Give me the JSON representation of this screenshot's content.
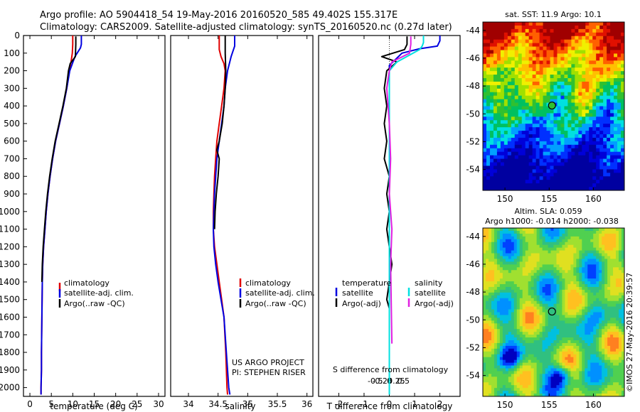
{
  "header": {
    "line1": "Argo profile: AO 5904418_54 19-May-2016 20160520_585 49.402S 155.317E",
    "line2": "Climatology: CARS2009. Satellite-adjusted climatology: synTS_20160520.nc (0.27d later)"
  },
  "colors": {
    "climatology": "#e00000",
    "satellite": "#0000e0",
    "argo": "#000000",
    "sal_satellite": "#00e0e0",
    "sal_argo": "#e020e0"
  },
  "chart_data": [
    {
      "type": "line",
      "id": "temperature",
      "xlabel": "temperature (deg C)",
      "xlim": [
        -1.5,
        31.5
      ],
      "ylim": [
        2050,
        0
      ],
      "x_ticks": [
        0,
        5,
        10,
        15,
        20,
        25,
        30
      ],
      "y_ticks": [
        0,
        100,
        200,
        300,
        400,
        500,
        600,
        700,
        800,
        900,
        1000,
        1100,
        1200,
        1300,
        1400,
        1500,
        1600,
        1700,
        1800,
        1900,
        2000
      ],
      "legend": [
        "climatology",
        "satellite-adj. clim.",
        "Argo(..raw -QC)"
      ],
      "series": [
        {
          "name": "climatology",
          "color": "#e00000",
          "x": [
            10.0,
            10.0,
            9.9,
            9.6,
            9.2,
            8.6,
            7.8,
            6.9,
            6.0,
            5.3,
            4.7,
            4.2,
            3.8,
            3.5,
            3.2,
            3.0,
            2.9,
            2.8,
            2.7,
            2.7,
            2.6,
            2.6
          ],
          "y": [
            0,
            50,
            100,
            150,
            200,
            300,
            400,
            500,
            600,
            700,
            800,
            900,
            1000,
            1100,
            1200,
            1300,
            1400,
            1600,
            1800,
            1900,
            2000,
            2040
          ]
        },
        {
          "name": "satellite-adj. clim.",
          "color": "#0000e0",
          "x": [
            12.0,
            12.0,
            11.8,
            10.5,
            9.3,
            8.6,
            7.8,
            6.9,
            6.0,
            5.3,
            4.7,
            4.2,
            3.8,
            3.5,
            3.2,
            3.0,
            2.9,
            2.8,
            2.7,
            2.7,
            2.6,
            2.6
          ],
          "y": [
            0,
            50,
            70,
            120,
            200,
            300,
            400,
            500,
            600,
            700,
            800,
            900,
            1000,
            1100,
            1200,
            1300,
            1400,
            1600,
            1800,
            1900,
            2000,
            2040
          ]
        },
        {
          "name": "Argo(..raw -QC)",
          "color": "#000000",
          "x": [
            10.7,
            10.7,
            10.6,
            9.4,
            9.0,
            8.5,
            7.7,
            6.8,
            5.9,
            5.2,
            4.6,
            4.1,
            3.7,
            3.4,
            3.1,
            2.9,
            2.8
          ],
          "y": [
            5,
            50,
            120,
            160,
            200,
            300,
            400,
            500,
            600,
            700,
            800,
            900,
            1000,
            1100,
            1200,
            1300,
            1400
          ]
        }
      ]
    },
    {
      "type": "line",
      "id": "salinity",
      "xlabel": "salinity",
      "xlim": [
        33.7,
        36.1
      ],
      "ylim": [
        2050,
        0
      ],
      "x_ticks": [
        34,
        34.5,
        35,
        35.5,
        36
      ],
      "legend": [
        "climatology",
        "satellite-adj. clim.",
        "Argo(..raw -QC)"
      ],
      "annotation": [
        "US ARGO PROJECT",
        "PI: STEPHEN RISER"
      ],
      "series": [
        {
          "name": "climatology",
          "color": "#e00000",
          "x": [
            34.52,
            34.52,
            34.55,
            34.6,
            34.62,
            34.6,
            34.56,
            34.52,
            34.48,
            34.46,
            34.44,
            34.43,
            34.42,
            34.42,
            34.44,
            34.48,
            34.52,
            34.56,
            34.6,
            34.63,
            34.65,
            34.66
          ],
          "y": [
            0,
            80,
            120,
            160,
            200,
            300,
            400,
            500,
            600,
            700,
            800,
            900,
            1000,
            1100,
            1200,
            1300,
            1400,
            1500,
            1600,
            1800,
            2000,
            2040
          ]
        },
        {
          "name": "satellite-adj. clim.",
          "color": "#0000e0",
          "x": [
            34.78,
            34.78,
            34.72,
            34.66,
            34.62,
            34.6,
            34.56,
            34.52,
            34.48,
            34.46,
            34.44,
            34.43,
            34.42,
            34.43,
            34.46,
            34.5,
            34.55,
            34.6,
            34.64,
            34.68,
            34.7
          ],
          "y": [
            0,
            60,
            120,
            200,
            300,
            400,
            500,
            600,
            700,
            800,
            900,
            1000,
            1100,
            1200,
            1300,
            1400,
            1500,
            1600,
            1800,
            2000,
            2040
          ]
        },
        {
          "name": "Argo(..raw -QC)",
          "color": "#000000",
          "x": [
            34.62,
            34.62,
            34.63,
            34.62,
            34.6,
            34.57,
            34.52,
            34.48,
            34.52,
            34.5,
            34.47,
            34.45,
            34.44
          ],
          "y": [
            0,
            100,
            200,
            300,
            400,
            500,
            600,
            650,
            700,
            800,
            900,
            1000,
            1100
          ]
        }
      ]
    },
    {
      "type": "line",
      "id": "difference",
      "xlabel": "T difference from climatology",
      "xlim": [
        -2.8,
        2.8
      ],
      "ylim": [
        2050,
        0
      ],
      "x_ticks": [
        -2,
        -1,
        0,
        1,
        2
      ],
      "s_label": "S difference from climatology",
      "s_ticks": [
        -0.5,
        -0.25,
        0,
        0.25,
        0.5
      ],
      "legend_headers": [
        "temperature",
        "salinity"
      ],
      "legend": {
        "temperature": [
          "satellite",
          "Argo(-adj)"
        ],
        "salinity": [
          "satellite",
          "Argo(-adj)"
        ]
      },
      "series": [
        {
          "name": "temperature satellite",
          "color": "#0000e0",
          "x": [
            2.0,
            2.0,
            1.9,
            1.2,
            0.5,
            0.0,
            0.0,
            0.0,
            0.0,
            0.0,
            0.0,
            0.0,
            0.0,
            0.0
          ],
          "y": [
            0,
            30,
            60,
            75,
            100,
            170,
            400,
            800,
            1100,
            1300,
            1500,
            1700,
            1900,
            2040
          ]
        },
        {
          "name": "temperature Argo(-adj)",
          "color": "#000000",
          "x": [
            0.7,
            0.7,
            0.6,
            -0.3,
            0.3,
            -0.1,
            -0.2,
            -0.1,
            -0.2,
            -0.1,
            -0.2,
            0.0,
            -0.1,
            0.0,
            -0.1,
            0.0,
            0.1,
            0.0,
            -0.1,
            0.0
          ],
          "y": [
            5,
            50,
            80,
            120,
            150,
            200,
            300,
            400,
            500,
            600,
            700,
            800,
            900,
            1000,
            1100,
            1200,
            1300,
            1400,
            1500,
            1550
          ]
        },
        {
          "name": "salinity satellite",
          "color": "#00e0e0",
          "x": [
            1.35,
            1.35,
            1.3,
            1.2,
            0.3,
            0.0,
            0.0,
            0.0,
            0.0,
            0.0
          ],
          "y": [
            0,
            40,
            60,
            80,
            150,
            200,
            600,
            1000,
            1500,
            2040
          ]
        },
        {
          "name": "salinity Argo(-adj)",
          "color": "#e020e0",
          "x": [
            0.85,
            0.85,
            0.8,
            0.1,
            0.0,
            -0.1,
            0.0,
            0.05,
            0.0,
            0.1,
            0.05,
            0.1
          ],
          "y": [
            5,
            50,
            100,
            150,
            200,
            300,
            500,
            700,
            900,
            1100,
            1300,
            1750
          ]
        }
      ]
    },
    {
      "type": "heatmap",
      "id": "sst-map",
      "title": "sat. SST: 11.9 Argo: 10.1",
      "x_ticks": [
        150,
        155,
        160
      ],
      "y_ticks": [
        -44,
        -46,
        -48,
        -50,
        -52,
        -54
      ],
      "xlim": [
        147.5,
        163.5
      ],
      "ylim": [
        -55.5,
        -43.4
      ],
      "marker": {
        "lon": 155.317,
        "lat": -49.402
      }
    },
    {
      "type": "heatmap",
      "id": "sla-map",
      "title": "Altim. SLA: 0.059",
      "subtitle": "Argo h1000: -0.014 h2000: -0.038",
      "x_ticks": [
        150,
        155,
        160
      ],
      "y_ticks": [
        -44,
        -46,
        -48,
        -50,
        -52,
        -54
      ],
      "xlim": [
        147.5,
        163.5
      ],
      "ylim": [
        -55.5,
        -43.4
      ],
      "marker": {
        "lon": 155.317,
        "lat": -49.402
      }
    }
  ],
  "credit": "©IMOS 27-May-2016 20:39:57"
}
